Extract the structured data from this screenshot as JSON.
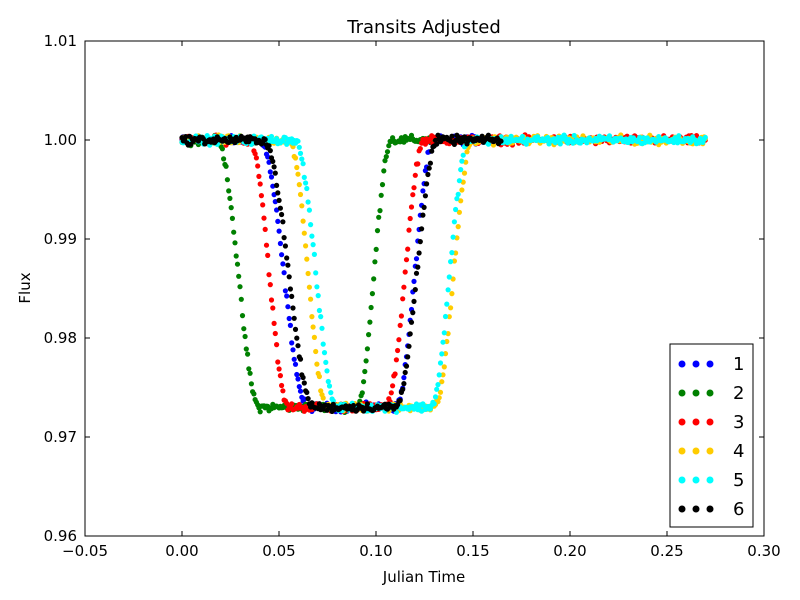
{
  "chart_data": {
    "type": "scatter",
    "title": "Transits Adjusted",
    "xlabel": "Julian Time",
    "ylabel": "Flux",
    "xlim": [
      -0.05,
      0.3
    ],
    "ylim": [
      0.96,
      1.01
    ],
    "x_ticks": [
      -0.05,
      0.0,
      0.05,
      0.1,
      0.15,
      0.2,
      0.25,
      0.3
    ],
    "x_tick_labels": [
      "−0.05",
      "0.00",
      "0.05",
      "0.10",
      "0.15",
      "0.20",
      "0.25",
      "0.30"
    ],
    "y_ticks": [
      0.96,
      0.97,
      0.98,
      0.99,
      1.0,
      1.01
    ],
    "y_tick_labels": [
      "0.96",
      "0.97",
      "0.98",
      "0.99",
      "1.00",
      "1.01"
    ],
    "grid": false,
    "legend_position": "lower-right",
    "transit_depth_flux": 0.973,
    "baseline_flux": 1.0,
    "series": [
      {
        "name": "1",
        "color": "#0000ff",
        "x_start": 0.0,
        "x_end": 0.165,
        "ingress_start": 0.04,
        "ingress_end": 0.065,
        "egress_start": 0.11,
        "egress_end": 0.13
      },
      {
        "name": "2",
        "color": "#008000",
        "x_start": 0.0,
        "x_end": 0.13,
        "ingress_start": 0.018,
        "ingress_end": 0.04,
        "egress_start": 0.09,
        "egress_end": 0.108
      },
      {
        "name": "3",
        "color": "#ff0000",
        "x_start": 0.0,
        "x_end": 0.27,
        "ingress_start": 0.035,
        "ingress_end": 0.055,
        "egress_start": 0.105,
        "egress_end": 0.125
      },
      {
        "name": "4",
        "color": "#ffcc00",
        "x_start": 0.0,
        "x_end": 0.27,
        "ingress_start": 0.055,
        "ingress_end": 0.075,
        "egress_start": 0.13,
        "egress_end": 0.15
      },
      {
        "name": "5",
        "color": "#00ffff",
        "x_start": 0.0,
        "x_end": 0.27,
        "ingress_start": 0.058,
        "ingress_end": 0.08,
        "egress_start": 0.128,
        "egress_end": 0.148
      },
      {
        "name": "6",
        "color": "#000000",
        "x_start": 0.0,
        "x_end": 0.165,
        "ingress_start": 0.042,
        "ingress_end": 0.068,
        "egress_start": 0.11,
        "egress_end": 0.132
      }
    ]
  }
}
